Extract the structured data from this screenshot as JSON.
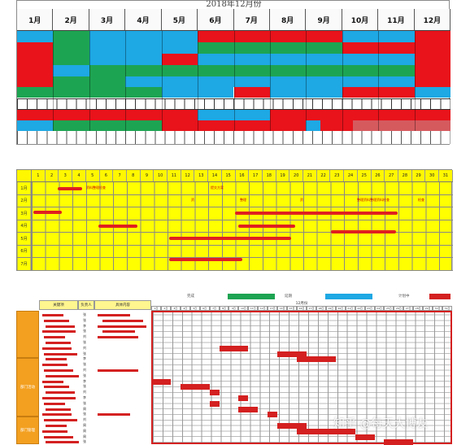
{
  "panel1": {
    "title": "2018年12月份",
    "months": [
      "1月",
      "2月",
      "3月",
      "4月",
      "5月",
      "6月",
      "7月",
      "8月",
      "9月",
      "10月",
      "11月",
      "12月"
    ],
    "colors": {
      "red": "#e8131b",
      "green": "#1da452",
      "blue": "#1ea8e4",
      "pink": "#d55a5e"
    }
  },
  "panel2": {
    "days": [
      "1",
      "2",
      "3",
      "4",
      "5",
      "6",
      "7",
      "8",
      "9",
      "10",
      "11",
      "12",
      "13",
      "14",
      "15",
      "16",
      "17",
      "18",
      "19",
      "20",
      "21",
      "22",
      "23",
      "24",
      "25",
      "26",
      "27",
      "28",
      "29",
      "30",
      "31"
    ],
    "rows": [
      "1月",
      "2月",
      "3月",
      "4月",
      "5月",
      "6月",
      "7月"
    ],
    "notes": {
      "n1": "资料整理检查",
      "n2": "提交方案",
      "n3": "资",
      "n4": "整理",
      "n5": "资",
      "n6": "整理资料整理资料检查",
      "n7": "检查"
    }
  },
  "panel3": {
    "headers": {
      "tasks": "关键项",
      "owner": "负责人",
      "content": "具体内容",
      "month": "12月份"
    },
    "legend": [
      {
        "label": "完成",
        "color": "#1da452"
      },
      {
        "label": "延期",
        "color": "#1ea8e4"
      },
      {
        "label": "计划中",
        "color": "#d42020"
      }
    ],
    "categories": [
      "",
      "部门活动",
      "部门管理"
    ],
    "owners": [
      "张",
      "张",
      "李",
      "张",
      "刘",
      "张",
      "刘",
      "张",
      "李",
      "张",
      "刘",
      "张",
      "李",
      "张",
      "刘",
      "李",
      "张",
      "周",
      "张",
      "刘",
      "周",
      "周",
      "周",
      "张"
    ],
    "days": [
      "1日",
      "2日",
      "3日",
      "4日",
      "5日",
      "6日",
      "7日",
      "8日",
      "9日",
      "10日",
      "11日",
      "12日",
      "13日",
      "14日",
      "15日",
      "16日",
      "17日",
      "18日",
      "19日",
      "20日",
      "21日",
      "22日",
      "23日",
      "24日",
      "25日",
      "26日",
      "27日",
      "28日",
      "29日",
      "30日",
      "31日"
    ]
  },
  "watermark": "知乎 @每天大博友"
}
